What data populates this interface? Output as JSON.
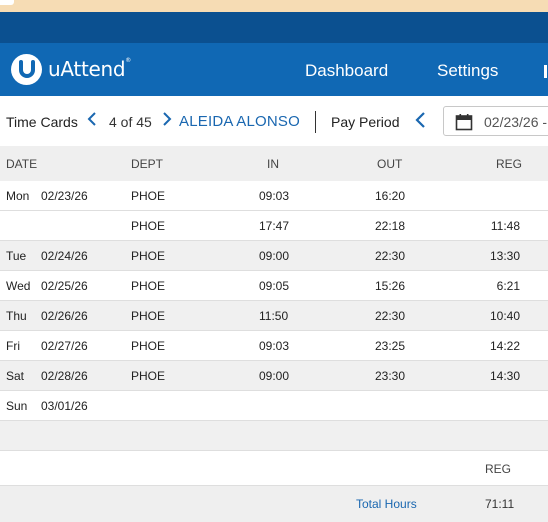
{
  "app": {
    "logo_text": "uAttend",
    "trademark": "®"
  },
  "nav": {
    "dashboard": "Dashboard",
    "settings": "Settings"
  },
  "toolbar": {
    "title": "Time Cards",
    "employee_position": "4 of 45",
    "employee_name": "ALEIDA ALONSO",
    "pay_period_label": "Pay Period",
    "pay_period_start": "02/23/26 -"
  },
  "table": {
    "headers": {
      "date": "DATE",
      "dept": "DEPT",
      "in": "IN",
      "out": "OUT",
      "reg": "REG"
    },
    "rows": [
      {
        "day": "Mon",
        "date": "02/23/26",
        "dept": "PHOE",
        "in": "09:03",
        "out": "16:20",
        "reg": ""
      },
      {
        "day": "",
        "date": "",
        "dept": "PHOE",
        "in": "17:47",
        "out": "22:18",
        "reg": "11:48"
      },
      {
        "day": "Tue",
        "date": "02/24/26",
        "dept": "PHOE",
        "in": "09:00",
        "out": "22:30",
        "reg": "13:30"
      },
      {
        "day": "Wed",
        "date": "02/25/26",
        "dept": "PHOE",
        "in": "09:05",
        "out": "15:26",
        "reg": "6:21"
      },
      {
        "day": "Thu",
        "date": "02/26/26",
        "dept": "PHOE",
        "in": "11:50",
        "out": "22:30",
        "reg": "10:40"
      },
      {
        "day": "Fri",
        "date": "02/27/26",
        "dept": "PHOE",
        "in": "09:03",
        "out": "23:25",
        "reg": "14:22"
      },
      {
        "day": "Sat",
        "date": "02/28/26",
        "dept": "PHOE",
        "in": "09:00",
        "out": "23:30",
        "reg": "14:30"
      },
      {
        "day": "Sun",
        "date": "03/01/26",
        "dept": "",
        "in": "",
        "out": "",
        "reg": ""
      }
    ]
  },
  "summary": {
    "reg_header": "REG",
    "total_label": "Total Hours",
    "total_reg": "71:11"
  },
  "colors": {
    "navbar": "#1068b4",
    "dark_band": "#0b5090",
    "top_strip": "#f6dcb4",
    "accent_text": "#1a67b0"
  },
  "icons": {
    "logo": "uattend-logo-icon",
    "prev": "chevron-left-icon",
    "next": "chevron-right-icon",
    "calendar": "calendar-icon"
  }
}
